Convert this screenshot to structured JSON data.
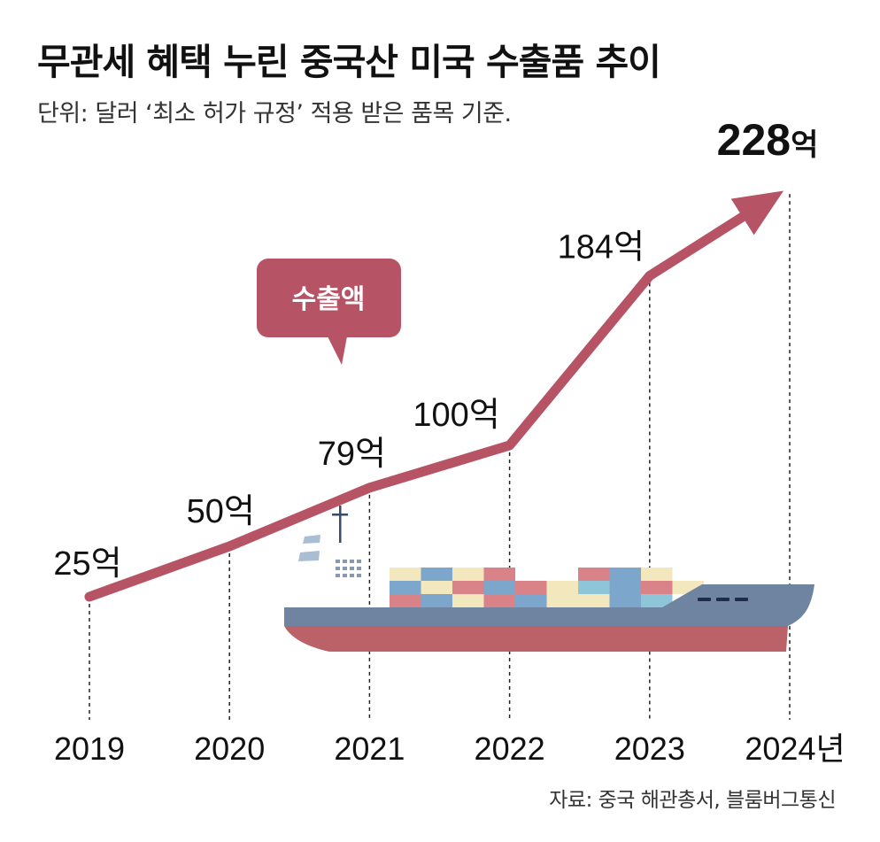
{
  "title": "무관세 혜택 누린 중국산 미국 수출품 추이",
  "subtitle": "단위: 달러 ‘최소 허가 규정’ 적용 받은 품목 기준.",
  "source": "자료: 중국 해관총서, 블룸버그통신",
  "colors": {
    "line": "#b65465",
    "bubble": "#b65465",
    "hull_red": "#bb6168",
    "hull_blue": "#6f84a0"
  },
  "chart_data": {
    "type": "line",
    "categories": [
      "2019",
      "2020",
      "2021",
      "2022",
      "2023",
      "2024년"
    ],
    "values": [
      25,
      50,
      79,
      100,
      184,
      228
    ],
    "value_labels": [
      "25억",
      "50억",
      "79억",
      "100억",
      "184억",
      "228억"
    ],
    "legend_bubble": "수출액",
    "ylim": [
      0,
      240
    ],
    "grid": false
  }
}
